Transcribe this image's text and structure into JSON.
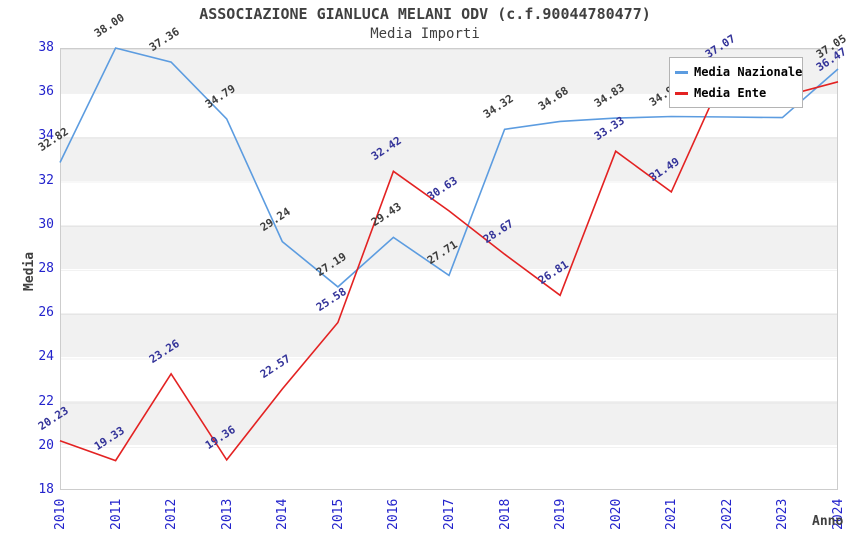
{
  "chart_data": {
    "type": "line",
    "title": "ASSOCIAZIONE GIANLUCA MELANI ODV (c.f.90044780477)",
    "subtitle": "Media Importi",
    "xlabel": "Anno",
    "ylabel": "Media",
    "ylim": [
      18,
      38
    ],
    "yticks": [
      38,
      36,
      34,
      32,
      30,
      28,
      26,
      24,
      22,
      20,
      18
    ],
    "grid": "alternating-horizontal-bands",
    "legend_position": "top-right",
    "categories": [
      "2010",
      "2011",
      "2012",
      "2013",
      "2014",
      "2015",
      "2016",
      "2017",
      "2018",
      "2019",
      "2020",
      "2021",
      "2022",
      "2023",
      "2024"
    ],
    "series": [
      {
        "name": "Media Nazionale",
        "color": "#5c9ce0",
        "label_color": "#3d3d3d",
        "values": [
          "32.82",
          "38.00",
          "37.36",
          "34.79",
          "29.24",
          "27.19",
          "29.43",
          "27.71",
          "34.32",
          "34.68",
          "34.83",
          "34.90",
          "34.88",
          "34.85",
          "37.05"
        ]
      },
      {
        "name": "Media Ente",
        "color": "#e32222",
        "label_color": "#333399",
        "values": [
          "20.23",
          "19.33",
          "23.26",
          "19.36",
          "22.57",
          "25.58",
          "32.42",
          "30.63",
          "28.67",
          "26.81",
          "33.33",
          "31.49",
          "37.07",
          "35.80",
          "36.47"
        ]
      }
    ]
  },
  "colors": {
    "axis_text": "#2323cc",
    "title_text": "#404040",
    "band_gray": "#f1f1f1",
    "plot_border": "#cdcdcd",
    "legend_border": "#b4b4b4",
    "background": "#ffffff"
  }
}
